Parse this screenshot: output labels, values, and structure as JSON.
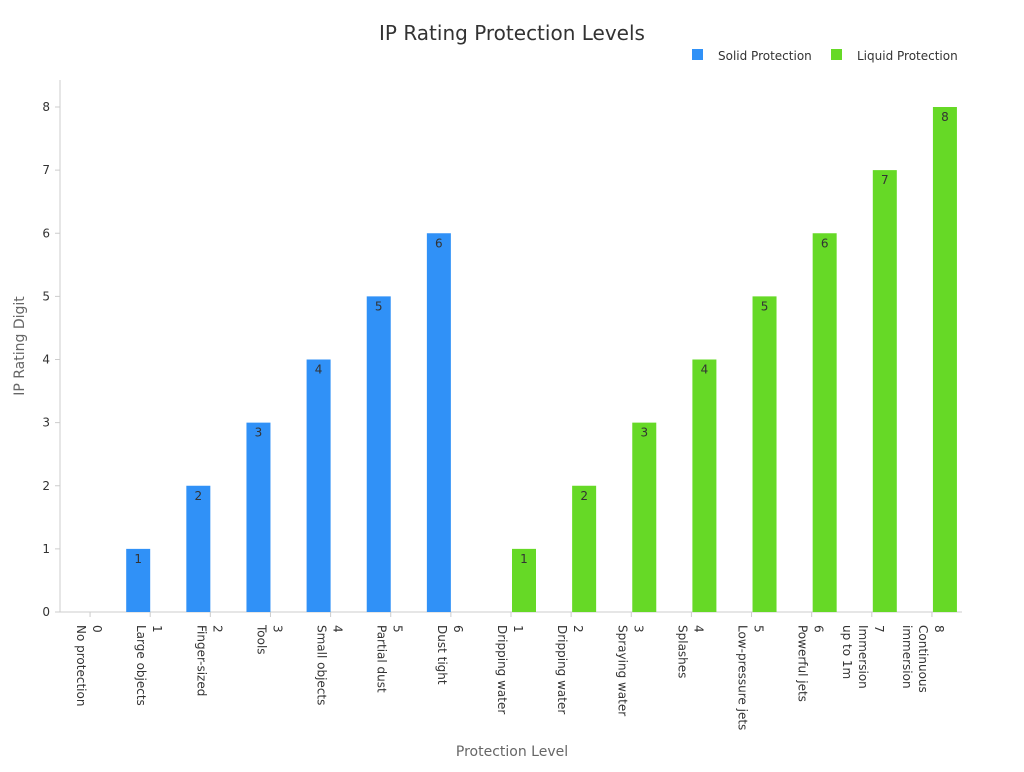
{
  "chart_data": {
    "type": "bar",
    "title": "IP Rating Protection Levels",
    "xlabel": "Protection Level",
    "ylabel": "IP Rating Digit",
    "ylim": [
      0,
      8
    ],
    "yticks": [
      "0",
      "1",
      "2",
      "3",
      "4",
      "5",
      "6",
      "7",
      "8"
    ],
    "legend_position": "top-right",
    "categories": [
      [
        "0",
        "No protection"
      ],
      [
        "1",
        "Large objects"
      ],
      [
        "2",
        "Finger-sized"
      ],
      [
        "3",
        "Tools"
      ],
      [
        "4",
        "Small objects"
      ],
      [
        "5",
        "Partial dust"
      ],
      [
        "6",
        "Dust tight"
      ],
      [
        "1",
        "Dripping water"
      ],
      [
        "2",
        "Dripping water"
      ],
      [
        "3",
        "Spraying water"
      ],
      [
        "4",
        "Splashes"
      ],
      [
        "5",
        "Low-pressure jets"
      ],
      [
        "6",
        "Powerful jets"
      ],
      [
        "7",
        "Immersion",
        "up to 1m"
      ],
      [
        "8",
        "Continuous",
        "immersion"
      ]
    ],
    "series": [
      {
        "name": "Solid Protection",
        "color": "#3091f7",
        "values": [
          0,
          1,
          2,
          3,
          4,
          5,
          6,
          null,
          null,
          null,
          null,
          null,
          null,
          null,
          null
        ]
      },
      {
        "name": "Liquid Protection",
        "color": "#66d926",
        "values": [
          null,
          null,
          null,
          null,
          null,
          null,
          null,
          1,
          2,
          3,
          4,
          5,
          6,
          7,
          8
        ]
      }
    ]
  }
}
